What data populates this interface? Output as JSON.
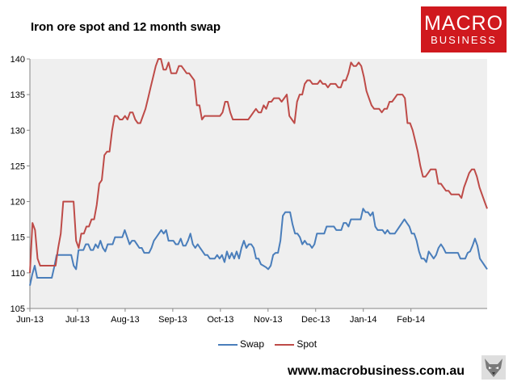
{
  "header": {
    "title": "Iron ore spot and 12 month swap"
  },
  "logo": {
    "line1": "MACRO",
    "line2": "BUSINESS"
  },
  "footer": {
    "url": "www.macrobusiness.com.au"
  },
  "chart_data": {
    "type": "line",
    "title": "Iron ore spot and 12 month swap",
    "xlabel": "",
    "ylabel": "",
    "ylim": [
      105,
      140
    ],
    "yticks": [
      105,
      110,
      115,
      120,
      125,
      130,
      135,
      140
    ],
    "xtick_labels": [
      "Jun-13",
      "Jul-13",
      "Aug-13",
      "Sep-13",
      "Oct-13",
      "Nov-13",
      "Dec-13",
      "Jan-14",
      "Feb-14"
    ],
    "grid": false,
    "legend": "bottom",
    "series": [
      {
        "name": "Swap",
        "color": "#4a7ebb",
        "values": [
          108.2,
          109.8,
          111.0,
          109.3,
          109.3,
          109.3,
          109.3,
          109.3,
          109.3,
          109.3,
          110.8,
          112.5,
          112.5,
          112.5,
          112.5,
          112.5,
          112.5,
          112.5,
          111.0,
          110.5,
          113.2,
          113.2,
          113.2,
          114.0,
          114.0,
          113.2,
          113.2,
          114.0,
          113.5,
          114.5,
          113.5,
          113.0,
          114.0,
          114.0,
          114.0,
          115.0,
          115.0,
          115.0,
          115.0,
          116.0,
          115.0,
          114.0,
          114.5,
          114.5,
          114.0,
          113.5,
          113.5,
          112.8,
          112.8,
          112.8,
          113.5,
          114.5,
          115.0,
          115.5,
          116.0,
          115.5,
          116.0,
          114.5,
          114.5,
          114.5,
          114.0,
          114.0,
          114.8,
          113.8,
          113.8,
          114.5,
          115.5,
          114.0,
          113.5,
          114.0,
          113.5,
          113.0,
          112.5,
          112.5,
          112.0,
          112.0,
          112.0,
          112.5,
          112.0,
          112.5,
          111.5,
          113.0,
          112.0,
          112.8,
          112.0,
          113.0,
          112.0,
          113.5,
          114.5,
          113.5,
          114.0,
          114.0,
          113.5,
          112.0,
          112.0,
          111.2,
          111.0,
          110.8,
          110.5,
          111.0,
          112.5,
          112.8,
          112.8,
          114.5,
          118.0,
          118.5,
          118.5,
          118.5,
          116.8,
          115.5,
          115.5,
          115.0,
          114.0,
          114.5,
          114.0,
          114.0,
          113.5,
          114.0,
          115.5,
          115.5,
          115.5,
          115.5,
          116.5,
          116.5,
          116.5,
          116.5,
          116.0,
          116.0,
          116.0,
          117.0,
          117.0,
          116.5,
          117.5,
          117.5,
          117.5,
          117.5,
          117.5,
          119.0,
          118.5,
          118.5,
          118.0,
          118.5,
          116.5,
          116.0,
          116.0,
          116.0,
          115.5,
          116.0,
          115.5,
          115.5,
          115.5,
          116.0,
          116.5,
          117.0,
          117.5,
          117.0,
          116.5,
          115.5,
          115.5,
          114.5,
          113.0,
          112.0,
          112.0,
          111.5,
          113.0,
          112.5,
          112.0,
          112.5,
          113.5,
          114.0,
          113.5,
          112.8,
          112.8,
          112.8,
          112.8,
          112.8,
          112.8,
          112.0,
          112.0,
          112.0,
          112.8,
          113.0,
          113.8,
          114.8,
          113.8,
          112.0,
          111.5,
          111.0,
          110.5
        ]
      },
      {
        "name": "Spot",
        "color": "#be4b48",
        "values": [
          110.0,
          117.0,
          116.0,
          112.0,
          111.0,
          111.0,
          111.0,
          111.0,
          111.0,
          111.0,
          111.0,
          113.5,
          115.5,
          120.0,
          120.0,
          120.0,
          120.0,
          120.0,
          114.5,
          113.5,
          115.5,
          115.5,
          116.5,
          116.5,
          117.5,
          117.5,
          119.5,
          122.5,
          123.0,
          126.5,
          127.0,
          127.0,
          130.0,
          132.0,
          132.0,
          131.5,
          131.5,
          132.0,
          131.5,
          132.5,
          132.5,
          131.5,
          131.0,
          131.0,
          132.0,
          133.0,
          134.5,
          136.0,
          137.5,
          139.0,
          141.0,
          141.0,
          138.5,
          138.5,
          139.5,
          138.0,
          138.0,
          138.0,
          139.0,
          139.0,
          138.5,
          138.0,
          138.0,
          137.5,
          137.0,
          133.5,
          133.5,
          131.5,
          132.0,
          132.0,
          132.0,
          132.0,
          132.0,
          132.0,
          132.0,
          132.5,
          134.0,
          134.0,
          132.5,
          131.5,
          131.5,
          131.5,
          131.5,
          131.5,
          131.5,
          131.5,
          132.0,
          132.5,
          133.0,
          132.5,
          132.5,
          133.5,
          133.0,
          134.0,
          134.0,
          134.5,
          134.5,
          134.5,
          134.0,
          134.5,
          135.0,
          132.0,
          131.5,
          131.0,
          134.0,
          135.0,
          135.0,
          136.5,
          137.0,
          137.0,
          136.5,
          136.5,
          136.5,
          137.0,
          136.5,
          136.5,
          136.0,
          136.5,
          136.5,
          136.5,
          136.0,
          136.0,
          137.0,
          137.0,
          138.0,
          139.5,
          139.0,
          139.0,
          139.5,
          139.0,
          137.5,
          135.5,
          134.5,
          133.5,
          133.0,
          133.0,
          133.0,
          132.5,
          133.0,
          133.0,
          134.0,
          134.0,
          134.5,
          135.0,
          135.0,
          135.0,
          134.5,
          131.0,
          131.0,
          130.0,
          128.5,
          127.0,
          125.0,
          123.5,
          123.5,
          124.0,
          124.5,
          124.5,
          124.5,
          122.5,
          122.5,
          122.0,
          121.5,
          121.5,
          121.0,
          121.0,
          121.0,
          121.0,
          120.5,
          122.0,
          123.0,
          124.0,
          124.5,
          124.5,
          123.5,
          122.0,
          121.0,
          120.0,
          119.0
        ]
      }
    ]
  }
}
